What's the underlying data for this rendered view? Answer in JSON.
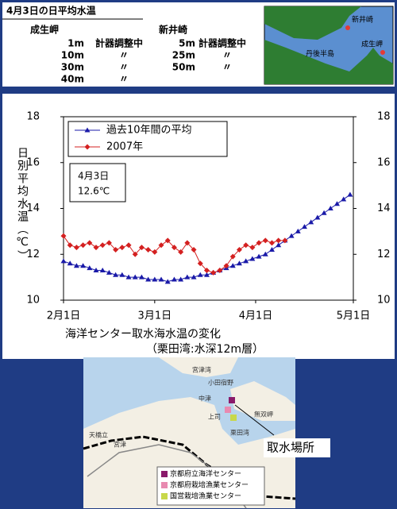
{
  "header": {
    "title": "4月3日の日平均水温",
    "sites": [
      {
        "name": "成生岬",
        "rows": [
          [
            "1m",
            "計器調整中"
          ],
          [
            "10m",
            "〃"
          ],
          [
            "30m",
            "〃"
          ],
          [
            "40m",
            "〃"
          ]
        ]
      },
      {
        "name": "新井崎",
        "rows": [
          [
            "5m",
            "計器調整中"
          ],
          [
            "25m",
            "〃"
          ],
          [
            "50m",
            "〃"
          ]
        ]
      }
    ],
    "map_labels": [
      "新井崎",
      "成生岬",
      "丹後半島"
    ]
  },
  "chart_data": {
    "type": "line",
    "title": "海洋センター取水海水温の変化",
    "subtitle": "（栗田湾:水深12m層）",
    "ylabel": "日別平均水温（℃）",
    "annotation": [
      "4月3日",
      "12.6℃"
    ],
    "x": [
      0,
      2,
      4,
      6,
      8,
      10,
      12,
      14,
      16,
      18,
      20,
      22,
      24,
      26,
      28,
      30,
      32,
      34,
      36,
      38,
      40,
      42,
      44,
      46,
      48,
      50,
      52,
      54,
      56,
      58,
      60,
      62,
      64,
      66,
      68,
      70,
      72,
      74,
      76,
      78,
      80,
      82,
      84,
      86,
      88
    ],
    "xlim": [
      0,
      89
    ],
    "xticks": [
      {
        "value": 0,
        "label": "2月1日"
      },
      {
        "value": 28,
        "label": "3月1日"
      },
      {
        "value": 59,
        "label": "4月1日"
      },
      {
        "value": 89,
        "label": "5月1日"
      }
    ],
    "ylim": [
      10,
      18
    ],
    "yticks": [
      10,
      12,
      14,
      16,
      18
    ],
    "legend": "upper left",
    "series": [
      {
        "name": "過去10年間の平均",
        "color": "#1a1aa8",
        "marker": "triangle",
        "values": [
          11.7,
          11.6,
          11.5,
          11.5,
          11.4,
          11.3,
          11.3,
          11.2,
          11.1,
          11.1,
          11.0,
          11.0,
          11.0,
          10.9,
          10.9,
          10.9,
          10.8,
          10.9,
          10.9,
          11.0,
          11.0,
          11.1,
          11.1,
          11.2,
          11.3,
          11.4,
          11.5,
          11.6,
          11.7,
          11.8,
          11.9,
          12.0,
          12.2,
          12.4,
          12.6,
          12.8,
          13.0,
          13.2,
          13.4,
          13.6,
          13.8,
          14.0,
          14.2,
          14.4,
          14.6
        ]
      },
      {
        "name": "2007年",
        "color": "#d42020",
        "marker": "diamond",
        "values": [
          12.8,
          12.4,
          12.3,
          12.4,
          12.5,
          12.3,
          12.4,
          12.5,
          12.2,
          12.3,
          12.4,
          12.0,
          12.3,
          12.2,
          12.1,
          12.4,
          12.6,
          12.3,
          12.1,
          12.5,
          12.2,
          11.6,
          11.3,
          11.2,
          11.3,
          11.5,
          11.9,
          12.2,
          12.4,
          12.3,
          12.5,
          12.6,
          12.5,
          12.6,
          12.6,
          null,
          null,
          null,
          null,
          null,
          null,
          null,
          null,
          null,
          null
        ]
      }
    ]
  },
  "map": {
    "labels": [
      "宮津湾",
      "小田宿野",
      "中津",
      "上司",
      "栗田湾",
      "無双岬",
      "天橋立",
      "宮津"
    ],
    "callout": "取水場所",
    "legend": [
      {
        "label": "京都府立海洋センター",
        "color": "#8a1a6a"
      },
      {
        "label": "京都府栽培漁業センター",
        "color": "#e88ab0"
      },
      {
        "label": "国営栽培漁業センター",
        "color": "#c8d84a"
      }
    ]
  }
}
